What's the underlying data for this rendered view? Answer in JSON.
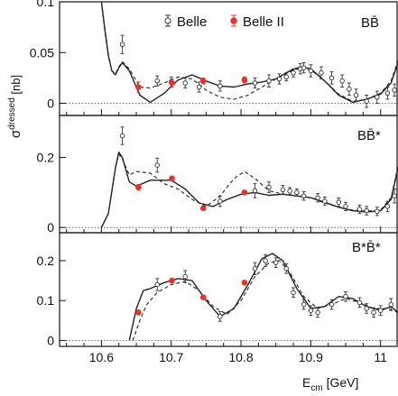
{
  "chart_data": [
    {
      "type": "scatter",
      "panel_label": "BB̄",
      "xlim": [
        10.54,
        11.025
      ],
      "ylim": [
        -0.012,
        0.1
      ],
      "y_ticks": [
        0,
        0.05,
        0.1
      ],
      "y_tick_labels": [
        "0",
        "0.05",
        "0.1"
      ],
      "legend": [
        "Belle",
        "Belle II"
      ],
      "legend_position": "top-center",
      "series": [
        {
          "name": "Belle",
          "marker": "open-circle",
          "color": "#333333",
          "x": [
            10.63,
            10.68,
            10.7,
            10.72,
            10.74,
            10.77,
            10.82,
            10.84,
            10.855,
            10.865,
            10.875,
            10.885,
            10.89,
            10.9,
            10.915,
            10.93,
            10.945,
            10.955,
            10.965,
            10.98,
            10.995,
            11.01,
            11.02
          ],
          "y": [
            0.058,
            0.022,
            0.021,
            0.02,
            0.016,
            0.017,
            0.02,
            0.022,
            0.024,
            0.026,
            0.03,
            0.034,
            0.035,
            0.032,
            0.03,
            0.025,
            0.022,
            0.014,
            0.008,
            0.002,
            0.006,
            0.01,
            0.013
          ],
          "err": [
            0.009,
            0.005,
            0.005,
            0.005,
            0.005,
            0.005,
            0.005,
            0.006,
            0.005,
            0.004,
            0.004,
            0.005,
            0.005,
            0.006,
            0.006,
            0.006,
            0.006,
            0.006,
            0.006,
            0.006,
            0.006,
            0.006,
            0.006
          ]
        },
        {
          "name": "Belle II",
          "marker": "filled-dot",
          "color": "#e8322c",
          "x": [
            10.653,
            10.701,
            10.746,
            10.805
          ],
          "y": [
            0.016,
            0.02,
            0.022,
            0.023
          ],
          "err": [
            0.005,
            0.004,
            0.003,
            0.003
          ]
        }
      ],
      "curves": [
        {
          "style": "solid",
          "x": [
            10.6,
            10.605,
            10.61,
            10.615,
            10.62,
            10.625,
            10.63,
            10.64,
            10.655,
            10.67,
            10.69,
            10.71,
            10.73,
            10.75,
            10.77,
            10.79,
            10.81,
            10.83,
            10.85,
            10.87,
            10.885,
            10.9,
            10.92,
            10.94,
            10.96,
            10.98,
            11.0,
            11.015,
            11.025
          ],
          "y": [
            0.1,
            0.072,
            0.047,
            0.032,
            0.028,
            0.035,
            0.04,
            0.032,
            0.008,
            0.001,
            0.01,
            0.023,
            0.028,
            0.022,
            0.017,
            0.016,
            0.019,
            0.021,
            0.024,
            0.032,
            0.036,
            0.034,
            0.022,
            0.008,
            0.001,
            0.004,
            0.009,
            0.02,
            0.04
          ]
        },
        {
          "style": "dashed",
          "x": [
            10.6,
            10.605,
            10.61,
            10.615,
            10.62,
            10.625,
            10.63,
            10.64,
            10.655,
            10.67,
            10.69,
            10.71,
            10.73,
            10.75,
            10.77,
            10.79,
            10.81,
            10.83,
            10.85,
            10.87,
            10.885,
            10.9,
            10.92,
            10.94,
            10.96,
            10.98,
            11.0,
            11.015,
            11.025
          ],
          "y": [
            0.1,
            0.07,
            0.046,
            0.032,
            0.029,
            0.036,
            0.041,
            0.034,
            0.016,
            0.015,
            0.02,
            0.026,
            0.024,
            0.013,
            0.006,
            0.004,
            0.008,
            0.016,
            0.024,
            0.031,
            0.035,
            0.033,
            0.022,
            0.009,
            0.002,
            0.004,
            0.01,
            0.022,
            0.042
          ]
        }
      ]
    },
    {
      "type": "scatter",
      "panel_label": "BB̄*",
      "xlim": [
        10.54,
        11.025
      ],
      "ylim": [
        -0.015,
        0.32
      ],
      "y_ticks": [
        0,
        0.2
      ],
      "y_tick_labels": [
        "0",
        "0.2"
      ],
      "series": [
        {
          "name": "Belle",
          "marker": "open-circle",
          "color": "#333333",
          "x": [
            10.63,
            10.68,
            10.77,
            10.82,
            10.84,
            10.86,
            10.87,
            10.88,
            10.89,
            10.91,
            10.92,
            10.94,
            10.95,
            10.97,
            10.98,
            10.995,
            11.01,
            11.02
          ],
          "y": [
            0.262,
            0.178,
            0.075,
            0.105,
            0.115,
            0.108,
            0.104,
            0.1,
            0.09,
            0.085,
            0.075,
            0.072,
            0.06,
            0.052,
            0.048,
            0.046,
            0.06,
            0.09
          ],
          "err": [
            0.025,
            0.02,
            0.015,
            0.02,
            0.015,
            0.012,
            0.01,
            0.01,
            0.012,
            0.012,
            0.012,
            0.012,
            0.012,
            0.012,
            0.012,
            0.012,
            0.015,
            0.02
          ]
        },
        {
          "name": "Belle II",
          "marker": "filled-dot",
          "color": "#e8322c",
          "x": [
            10.653,
            10.701,
            10.746,
            10.805
          ],
          "y": [
            0.115,
            0.14,
            0.055,
            0.1
          ],
          "err": [
            0.008,
            0.006,
            0.005,
            0.005
          ]
        }
      ],
      "curves": [
        {
          "style": "solid",
          "x": [
            10.6,
            10.61,
            10.62,
            10.625,
            10.63,
            10.64,
            10.65,
            10.67,
            10.7,
            10.72,
            10.74,
            10.76,
            10.78,
            10.8,
            10.82,
            10.84,
            10.86,
            10.88,
            10.9,
            10.92,
            10.94,
            10.96,
            10.98,
            11.0,
            11.015,
            11.025
          ],
          "y": [
            0.0,
            0.04,
            0.17,
            0.215,
            0.2,
            0.13,
            0.118,
            0.135,
            0.135,
            0.11,
            0.07,
            0.06,
            0.08,
            0.095,
            0.1,
            0.092,
            0.095,
            0.09,
            0.085,
            0.072,
            0.058,
            0.048,
            0.044,
            0.048,
            0.08,
            0.17
          ]
        },
        {
          "style": "dashed",
          "x": [
            10.6,
            10.61,
            10.62,
            10.625,
            10.63,
            10.64,
            10.65,
            10.67,
            10.69,
            10.71,
            10.73,
            10.75,
            10.77,
            10.79,
            10.805,
            10.82,
            10.84,
            10.86,
            10.88,
            10.9,
            10.92,
            10.94,
            10.96,
            10.98,
            11.0,
            11.015,
            11.025
          ],
          "y": [
            0.0,
            0.04,
            0.17,
            0.21,
            0.195,
            0.15,
            0.16,
            0.155,
            0.125,
            0.11,
            0.08,
            0.06,
            0.09,
            0.14,
            0.16,
            0.14,
            0.105,
            0.095,
            0.09,
            0.085,
            0.07,
            0.058,
            0.05,
            0.046,
            0.05,
            0.085,
            0.175
          ]
        }
      ]
    },
    {
      "type": "scatter",
      "panel_label": "B*B̄*",
      "xlim": [
        10.54,
        11.025
      ],
      "ylim": [
        -0.015,
        0.27
      ],
      "y_ticks": [
        0,
        0.1,
        0.2
      ],
      "y_tick_labels": [
        "0",
        "0.1",
        "0.2"
      ],
      "x_ticks": [
        10.6,
        10.7,
        10.8,
        10.9,
        11.0
      ],
      "x_tick_labels": [
        "10.6",
        "10.7",
        "10.8",
        "10.9",
        "11"
      ],
      "series": [
        {
          "name": "Belle",
          "marker": "open-circle",
          "color": "#333333",
          "x": [
            10.68,
            10.72,
            10.77,
            10.82,
            10.835,
            10.85,
            10.865,
            10.875,
            10.89,
            10.9,
            10.91,
            10.93,
            10.95,
            10.97,
            10.98,
            10.99,
            11.0,
            11.015
          ],
          "y": [
            0.14,
            0.16,
            0.06,
            0.18,
            0.2,
            0.195,
            0.18,
            0.12,
            0.09,
            0.075,
            0.07,
            0.09,
            0.11,
            0.095,
            0.08,
            0.07,
            0.075,
            0.09
          ],
          "err": [
            0.015,
            0.015,
            0.012,
            0.015,
            0.015,
            0.012,
            0.012,
            0.012,
            0.012,
            0.012,
            0.012,
            0.012,
            0.012,
            0.012,
            0.012,
            0.012,
            0.012,
            0.015
          ]
        },
        {
          "name": "Belle II",
          "marker": "filled-dot",
          "color": "#e8322c",
          "x": [
            10.653,
            10.701,
            10.746,
            10.805
          ],
          "y": [
            0.07,
            0.15,
            0.108,
            0.145
          ],
          "err": [
            0.006,
            0.006,
            0.005,
            0.005
          ]
        }
      ],
      "curves": [
        {
          "style": "solid",
          "x": [
            10.64,
            10.65,
            10.66,
            10.67,
            10.69,
            10.71,
            10.73,
            10.75,
            10.77,
            10.79,
            10.81,
            10.83,
            10.845,
            10.86,
            10.88,
            10.9,
            10.92,
            10.94,
            10.96,
            10.98,
            11.0,
            11.015,
            11.025
          ],
          "y": [
            0.0,
            0.08,
            0.125,
            0.13,
            0.145,
            0.155,
            0.15,
            0.1,
            0.06,
            0.08,
            0.14,
            0.205,
            0.218,
            0.2,
            0.13,
            0.08,
            0.085,
            0.11,
            0.105,
            0.085,
            0.075,
            0.085,
            0.07
          ]
        },
        {
          "style": "dashed",
          "x": [
            10.645,
            10.655,
            10.665,
            10.68,
            10.7,
            10.72,
            10.74,
            10.76,
            10.78,
            10.8,
            10.82,
            10.84,
            10.855,
            10.87,
            10.89,
            10.91,
            10.93,
            10.95,
            10.97,
            10.99,
            11.01,
            11.025
          ],
          "y": [
            0.0,
            0.05,
            0.09,
            0.12,
            0.14,
            0.148,
            0.125,
            0.085,
            0.065,
            0.1,
            0.16,
            0.195,
            0.2,
            0.17,
            0.11,
            0.08,
            0.09,
            0.105,
            0.095,
            0.08,
            0.08,
            0.07
          ]
        }
      ]
    }
  ],
  "axes": {
    "ylabel": "σ",
    "ylabel_superscript": "dressed",
    "ylabel_unit": " [nb]",
    "xlabel": "E",
    "xlabel_subscript": "cm",
    "xlabel_unit": "  [GeV]"
  },
  "colors": {
    "belle": "#333333",
    "belle2": "#e8322c",
    "curve": "#222222"
  }
}
